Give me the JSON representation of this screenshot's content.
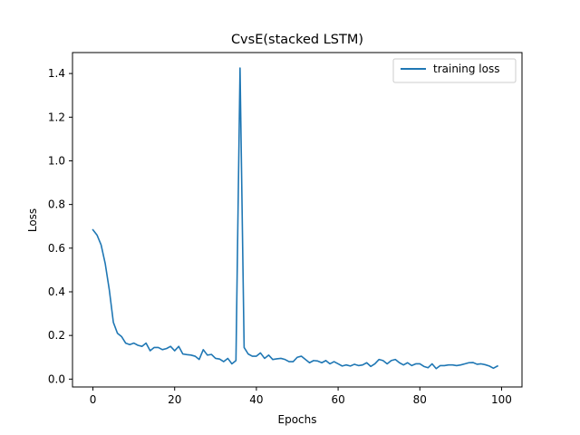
{
  "chart_data": {
    "type": "line",
    "title": "CvsE(stacked LSTM)",
    "xlabel": "Epochs",
    "ylabel": "Loss",
    "xlim": [
      -5,
      105
    ],
    "ylim": [
      -0.036,
      1.496
    ],
    "x_ticks": [
      0,
      20,
      40,
      60,
      80,
      100
    ],
    "y_ticks": [
      0.0,
      0.2,
      0.4,
      0.6,
      0.8,
      1.0,
      1.2,
      1.4
    ],
    "x_tick_labels": [
      "0",
      "20",
      "40",
      "60",
      "80",
      "100"
    ],
    "y_tick_labels": [
      "0.0",
      "0.2",
      "0.4",
      "0.6",
      "0.8",
      "1.0",
      "1.2",
      "1.4"
    ],
    "grid": false,
    "legend_position": "top-right",
    "series": [
      {
        "name": "training loss",
        "color": "#1f77b4",
        "x": [
          0,
          1,
          2,
          3,
          4,
          5,
          6,
          7,
          8,
          9,
          10,
          11,
          12,
          13,
          14,
          15,
          16,
          17,
          18,
          19,
          20,
          21,
          22,
          23,
          24,
          25,
          26,
          27,
          28,
          29,
          30,
          31,
          32,
          33,
          34,
          35,
          36,
          37,
          38,
          39,
          40,
          41,
          42,
          43,
          44,
          45,
          46,
          47,
          48,
          49,
          50,
          51,
          52,
          53,
          54,
          55,
          56,
          57,
          58,
          59,
          60,
          61,
          62,
          63,
          64,
          65,
          66,
          67,
          68,
          69,
          70,
          71,
          72,
          73,
          74,
          75,
          76,
          77,
          78,
          79,
          80,
          81,
          82,
          83,
          84,
          85,
          86,
          87,
          88,
          89,
          90,
          91,
          92,
          93,
          94,
          95,
          96,
          97,
          98,
          99
        ],
        "values": [
          0.684,
          0.66,
          0.615,
          0.53,
          0.41,
          0.26,
          0.21,
          0.195,
          0.165,
          0.158,
          0.165,
          0.155,
          0.15,
          0.165,
          0.13,
          0.145,
          0.145,
          0.135,
          0.14,
          0.15,
          0.13,
          0.15,
          0.115,
          0.112,
          0.11,
          0.105,
          0.09,
          0.135,
          0.11,
          0.113,
          0.095,
          0.092,
          0.08,
          0.095,
          0.07,
          0.085,
          1.425,
          0.145,
          0.115,
          0.105,
          0.105,
          0.12,
          0.095,
          0.11,
          0.09,
          0.093,
          0.095,
          0.09,
          0.08,
          0.08,
          0.1,
          0.105,
          0.09,
          0.075,
          0.085,
          0.083,
          0.075,
          0.085,
          0.07,
          0.08,
          0.07,
          0.06,
          0.065,
          0.06,
          0.068,
          0.062,
          0.065,
          0.075,
          0.058,
          0.07,
          0.09,
          0.085,
          0.07,
          0.085,
          0.09,
          0.075,
          0.065,
          0.075,
          0.062,
          0.07,
          0.07,
          0.058,
          0.052,
          0.07,
          0.048,
          0.062,
          0.062,
          0.065,
          0.065,
          0.062,
          0.065,
          0.07,
          0.075,
          0.076,
          0.068,
          0.07,
          0.066,
          0.06,
          0.05,
          0.06
        ]
      }
    ]
  }
}
